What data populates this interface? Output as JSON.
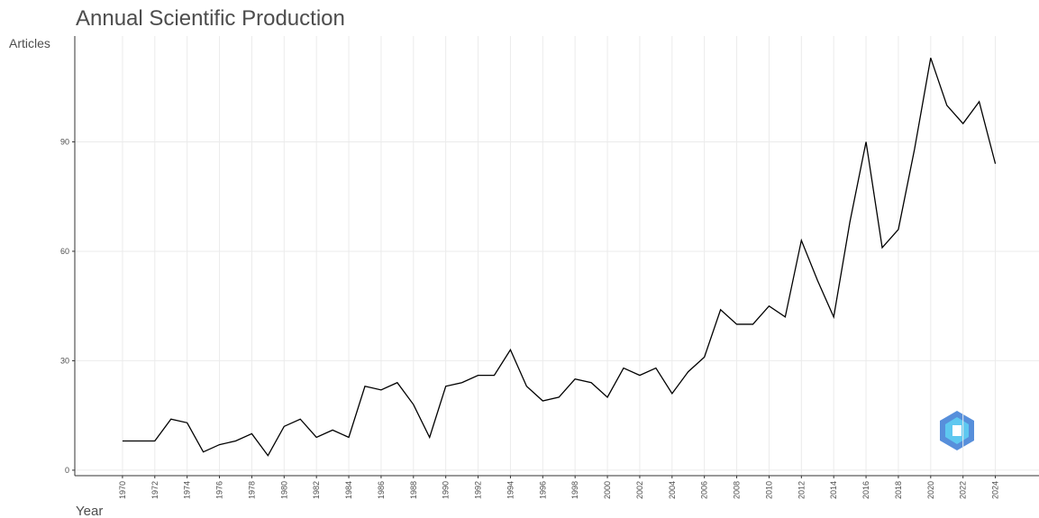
{
  "chart_data": {
    "type": "line",
    "title": "Annual Scientific Production",
    "y_label": "Articles",
    "x_label": "Year",
    "x": [
      1970,
      1971,
      1972,
      1973,
      1974,
      1975,
      1976,
      1977,
      1978,
      1979,
      1980,
      1981,
      1982,
      1983,
      1984,
      1985,
      1986,
      1987,
      1988,
      1989,
      1990,
      1991,
      1992,
      1993,
      1994,
      1995,
      1996,
      1997,
      1998,
      1999,
      2000,
      2001,
      2002,
      2003,
      2004,
      2005,
      2006,
      2007,
      2008,
      2009,
      2010,
      2011,
      2012,
      2013,
      2014,
      2015,
      2016,
      2017,
      2018,
      2019,
      2020,
      2021,
      2022,
      2023,
      2024
    ],
    "series": [
      {
        "name": "Articles",
        "color": "#000000",
        "values": [
          8,
          8,
          8,
          14,
          13,
          5,
          7,
          8,
          10,
          4,
          12,
          14,
          9,
          11,
          9,
          23,
          22,
          24,
          18,
          9,
          23,
          24,
          26,
          26,
          33,
          23,
          19,
          20,
          25,
          24,
          20,
          28,
          26,
          28,
          21,
          27,
          31,
          44,
          40,
          40,
          45,
          42,
          63,
          52,
          42,
          68,
          90,
          61,
          66,
          88,
          113,
          100,
          95,
          101,
          84
        ]
      }
    ],
    "xlim": [
      1967.05,
      2026.7
    ],
    "ylim": [
      -1.5,
      119
    ],
    "xticks": [
      1970,
      1972,
      1974,
      1976,
      1978,
      1980,
      1982,
      1984,
      1986,
      1988,
      1990,
      1992,
      1994,
      1996,
      1998,
      2000,
      2002,
      2004,
      2006,
      2008,
      2010,
      2012,
      2014,
      2016,
      2018,
      2020,
      2022,
      2024
    ],
    "yticks": [
      0,
      30,
      60,
      90
    ],
    "grid": true
  }
}
